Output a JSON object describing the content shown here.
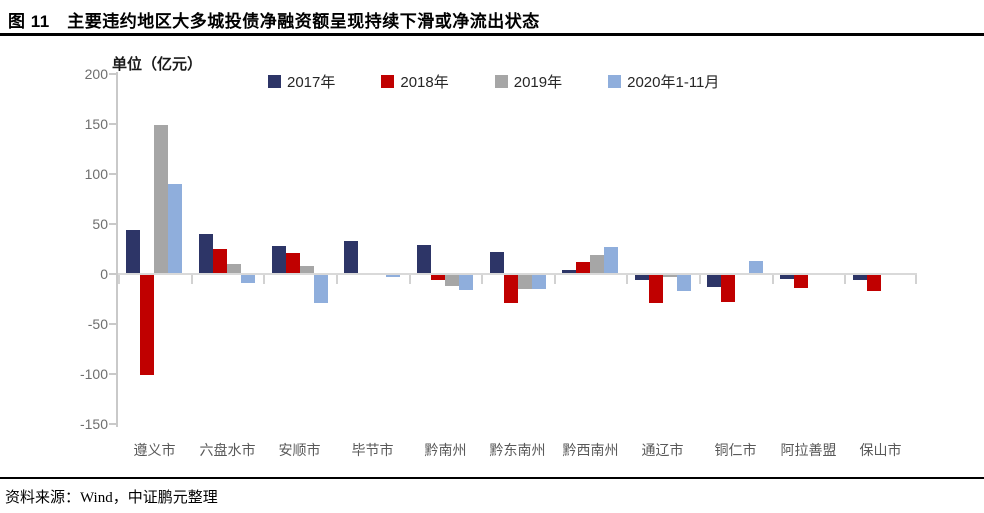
{
  "title": "图 11　主要违约地区大多城投债净融资额呈现持续下滑或净流出状态",
  "footer": {
    "source": "资料来源：Wind，中证鹏元整理"
  },
  "chart_data": {
    "type": "bar",
    "title": "主要违约地区大多城投债净融资额呈现持续下滑或净流出状态",
    "unit_label": "单位（亿元）",
    "categories": [
      "遵义市",
      "六盘水市",
      "安顺市",
      "毕节市",
      "黔南州",
      "黔东南州",
      "黔西南州",
      "通辽市",
      "铜仁市",
      "阿拉善盟",
      "保山市"
    ],
    "series": [
      {
        "name": "2017年",
        "color": "#2D3567",
        "values": [
          44,
          40,
          28,
          33,
          29,
          22,
          4,
          -5,
          -12,
          -4,
          -5
        ]
      },
      {
        "name": "2018年",
        "color": "#C00000",
        "values": [
          -100,
          25,
          21,
          0,
          -5,
          -28,
          12,
          -28,
          -27,
          -13,
          -16
        ]
      },
      {
        "name": "2019年",
        "color": "#A6A6A6",
        "values": [
          149,
          10,
          8,
          1,
          -11,
          -14,
          19,
          -2,
          0,
          0,
          0
        ]
      },
      {
        "name": "2020年1-11月",
        "color": "#8FAEDC",
        "values": [
          90,
          -8,
          -28,
          -2,
          -15,
          -14,
          27,
          -16,
          13,
          0,
          0
        ]
      }
    ],
    "ylim": [
      -150,
      200
    ],
    "yticks": [
      200,
      150,
      100,
      50,
      0,
      -50,
      -100,
      -150
    ],
    "grid": "none",
    "legend_position": "top",
    "axis_color": "#C9C9C9",
    "zero_line_color": "#D9D9D9"
  }
}
